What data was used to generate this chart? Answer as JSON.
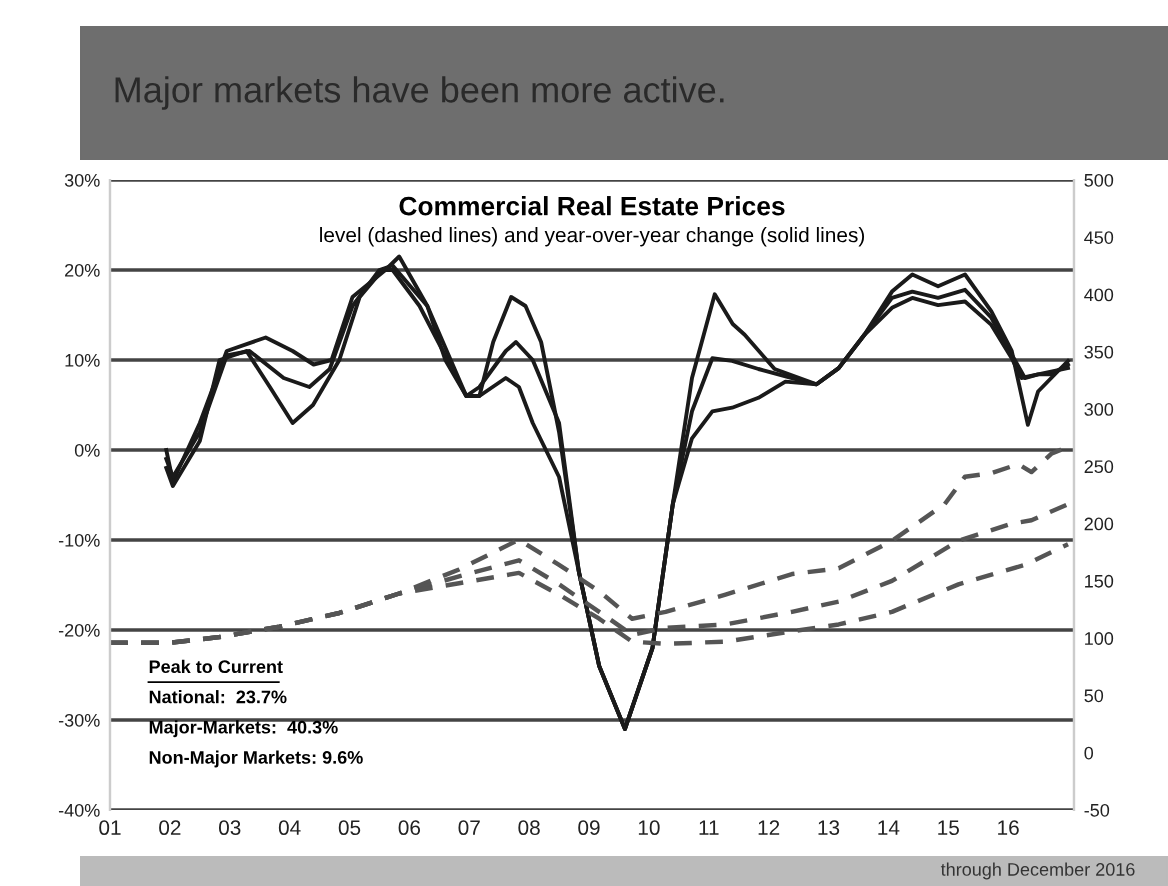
{
  "chart_data": {
    "type": "line",
    "title": "Commercial Real Estate Prices",
    "subtitle": "level (dashed lines) and year-over-year change (solid lines)",
    "annotations": [
      "Major markets have been more active.",
      "Peak to Current",
      "National:  23.7%",
      "Major-Markets:  40.3%",
      "Non-Major Markets: 9.6%",
      "through December 2016"
    ],
    "xlim": [
      2001,
      2017.1
    ],
    "xticks": [
      {
        "value": 2001,
        "label": "01"
      },
      {
        "value": 2002,
        "label": "02"
      },
      {
        "value": 2003,
        "label": "03"
      },
      {
        "value": 2004,
        "label": "04"
      },
      {
        "value": 2005,
        "label": "05"
      },
      {
        "value": 2006,
        "label": "06"
      },
      {
        "value": 2007,
        "label": "07"
      },
      {
        "value": 2008,
        "label": "08"
      },
      {
        "value": 2009,
        "label": "09"
      },
      {
        "value": 2010,
        "label": "10"
      },
      {
        "value": 2011,
        "label": "11"
      },
      {
        "value": 2012,
        "label": "12"
      },
      {
        "value": 2013,
        "label": "13"
      },
      {
        "value": 2014,
        "label": "14"
      },
      {
        "value": 2015,
        "label": "15"
      },
      {
        "value": 2016,
        "label": "16"
      }
    ],
    "ylim": [
      -40,
      30
    ],
    "yticks": [
      {
        "value": -40,
        "label": "-40%"
      },
      {
        "value": -30,
        "label": "-30%"
      },
      {
        "value": -20,
        "label": "-20%"
      },
      {
        "value": -10,
        "label": "-10%"
      },
      {
        "value": 0,
        "label": "0%"
      },
      {
        "value": 10,
        "label": "10%"
      },
      {
        "value": 20,
        "label": "20%"
      },
      {
        "value": 30,
        "label": "30%"
      }
    ],
    "y2lim": [
      -50,
      500
    ],
    "y2ticks": [
      -50,
      0,
      50,
      100,
      150,
      200,
      250,
      300,
      350,
      400,
      450,
      500
    ],
    "grid": "y",
    "series": [
      {
        "color": "#1a1a1a",
        "line_style": "solid",
        "x": [
          2001.94,
          2002.05,
          2002.5,
          2002.95,
          2003.6,
          2004.05,
          2004.4,
          2004.7,
          2005.05,
          2005.6,
          2005.83,
          2006.3,
          2006.6,
          2006.95,
          2007.17,
          2007.4,
          2007.7,
          2007.94,
          2008.2,
          2008.5,
          2008.83,
          2009.17,
          2009.6,
          2010.06,
          2010.4,
          2010.72,
          2011.1,
          2011.4,
          2011.6,
          2012.1,
          2012.8,
          2013.17,
          2013.6,
          2014.06,
          2014.4,
          2014.83,
          2015.28,
          2015.72,
          2016.06,
          2016.33,
          2016.5,
          2016.72,
          2017.0
        ],
        "values": [
          0,
          -3.5,
          3,
          11,
          12.5,
          11,
          9.5,
          10,
          17,
          20,
          21.5,
          16,
          10,
          6,
          6,
          12,
          17,
          16,
          12,
          2,
          -13.5,
          -24,
          -31,
          -22,
          -6,
          8,
          17.3,
          14,
          12.8,
          9,
          7.3,
          9.1,
          12.8,
          17.6,
          19.5,
          18.2,
          19.5,
          15.4,
          11,
          2.8,
          6.5,
          8,
          9.9
        ]
      },
      {
        "color": "#1a1a1a",
        "line_style": "solid",
        "x": [
          2001.94,
          2002.05,
          2002.5,
          2002.95,
          2003.33,
          2003.9,
          2004.33,
          2004.67,
          2005.05,
          2005.5,
          2005.72,
          2006.3,
          2006.95,
          2007.17,
          2007.61,
          2007.78,
          2008.06,
          2008.5,
          2008.83,
          2009.17,
          2009.6,
          2010.06,
          2010.4,
          2010.72,
          2011.06,
          2011.39,
          2011.83,
          2012.39,
          2012.8,
          2013.17,
          2013.6,
          2014.06,
          2014.4,
          2014.83,
          2015.28,
          2015.72,
          2016.06,
          2016.28,
          2016.5,
          2016.72,
          2017.0
        ],
        "values": [
          -1,
          -3,
          2,
          10.5,
          11,
          8,
          7,
          9,
          16,
          20,
          20.5,
          16,
          6,
          7,
          11,
          12,
          10,
          3,
          -13.5,
          -24,
          -31,
          -22,
          -6,
          4.3,
          10.2,
          9.9,
          9,
          8,
          7.3,
          9.1,
          12.8,
          16.9,
          17.6,
          16.9,
          17.8,
          14.7,
          10.6,
          8,
          8.4,
          8.4,
          9.5
        ]
      },
      {
        "color": "#1a1a1a",
        "line_style": "solid",
        "x": [
          2001.94,
          2002.05,
          2002.5,
          2002.83,
          2003.28,
          2003.67,
          2004.05,
          2004.39,
          2004.83,
          2005.17,
          2005.55,
          2005.72,
          2006.17,
          2006.95,
          2007.17,
          2007.61,
          2007.83,
          2008.06,
          2008.5,
          2008.83,
          2009.17,
          2009.6,
          2010.06,
          2010.4,
          2010.72,
          2011.06,
          2011.39,
          2011.83,
          2012.28,
          2012.8,
          2013.17,
          2013.6,
          2014.06,
          2014.4,
          2014.83,
          2015.28,
          2015.72,
          2016.06,
          2016.22,
          2016.5,
          2017.0
        ],
        "values": [
          -2,
          -4,
          1,
          10,
          11,
          7,
          3,
          5,
          10,
          17,
          20,
          20,
          16,
          6,
          6,
          8,
          7,
          3,
          -3,
          -13.5,
          -24,
          -31,
          -22,
          -6,
          1.3,
          4.3,
          4.7,
          5.8,
          7.6,
          7.3,
          9.1,
          12.8,
          15.8,
          16.9,
          16.1,
          16.5,
          13.9,
          10.2,
          8,
          8.4,
          9.1
        ]
      },
      {
        "color": "#555555",
        "line_style": "dashed",
        "axis": "y2",
        "x": [
          2001,
          2002,
          2002.83,
          2003.83,
          2004.83,
          2005.83,
          2006.83,
          2007.83,
          2008.5,
          2009.17,
          2009.72,
          2010.28,
          2011.28,
          2012.39,
          2013.17,
          2014.06,
          2014.94,
          2015.28,
          2015.72,
          2016.17,
          2016.39,
          2016.72,
          2017.0
        ],
        "values": [
          96,
          96,
          101,
          110,
          122,
          139,
          160,
          186,
          164,
          141,
          117,
          123,
          138,
          156,
          161,
          185,
          217,
          241,
          244,
          252,
          245,
          261,
          267
        ]
      },
      {
        "color": "#555555",
        "line_style": "dashed",
        "axis": "y2",
        "x": [
          2001,
          2002,
          2002.83,
          2003.83,
          2004.83,
          2005.83,
          2006.83,
          2007.83,
          2008.5,
          2009.17,
          2009.72,
          2010.28,
          2011.28,
          2012.39,
          2013.17,
          2014.06,
          2015.17,
          2016.06,
          2016.39,
          2017.0
        ],
        "values": [
          96,
          96,
          101,
          110,
          122,
          139,
          154,
          168,
          147,
          123,
          103,
          109,
          112,
          123,
          132,
          150,
          185,
          200,
          203,
          217
        ]
      },
      {
        "color": "#555555",
        "line_style": "dashed",
        "axis": "y2",
        "x": [
          2001,
          2002,
          2002.83,
          2003.83,
          2004.83,
          2005.83,
          2006.83,
          2007.83,
          2008.5,
          2009.17,
          2009.72,
          2010.28,
          2011.28,
          2012.39,
          2013.17,
          2014.06,
          2015.17,
          2016.28,
          2017.0
        ],
        "values": [
          96,
          96,
          101,
          110,
          122,
          139,
          148,
          157,
          138,
          117,
          97,
          95,
          97,
          106,
          112,
          123,
          147,
          164,
          182
        ]
      }
    ]
  }
}
